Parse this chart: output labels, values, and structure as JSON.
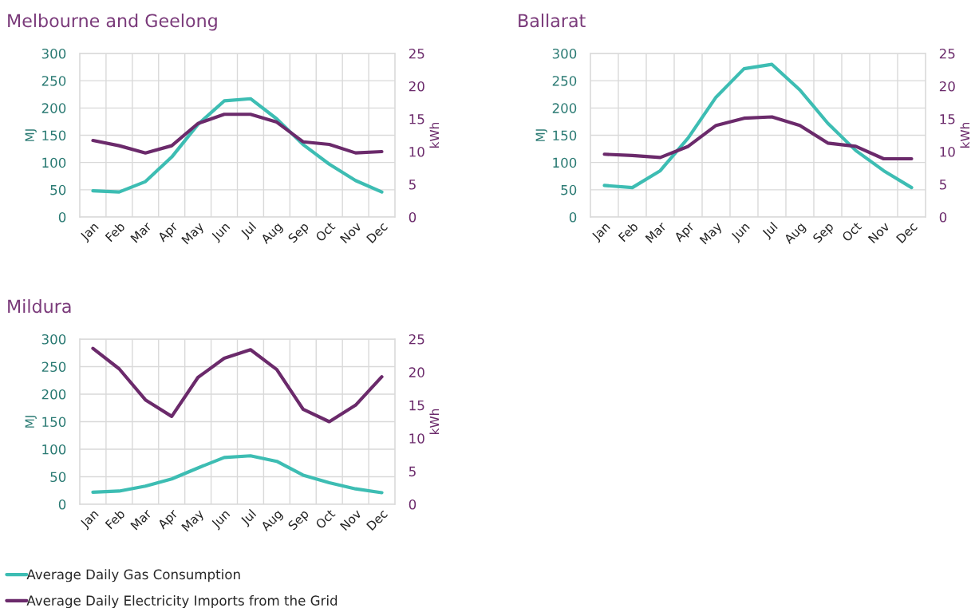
{
  "chart_data": [
    {
      "type": "line",
      "title": "Melbourne and Geelong",
      "ylabel": "MJ",
      "y2label": "kWh",
      "categories": [
        "Jan",
        "Feb",
        "Mar",
        "Apr",
        "May",
        "Jun",
        "Jul",
        "Aug",
        "Sep",
        "Oct",
        "Nov",
        "Dec"
      ],
      "ylim": [
        0,
        300
      ],
      "yticks": [
        0,
        50,
        100,
        150,
        200,
        250,
        300
      ],
      "y2lim": [
        0,
        25
      ],
      "y2ticks": [
        0,
        5,
        10,
        15,
        20,
        25
      ],
      "grid": true,
      "series": [
        {
          "color": "#3dbdb3",
          "values": [
            48,
            46,
            65,
            110,
            170,
            213,
            217,
            180,
            133,
            97,
            67,
            46
          ]
        },
        {
          "color": "#6b2a6b",
          "axis": "y2",
          "values": [
            11.7,
            10.9,
            9.8,
            10.9,
            14.3,
            15.7,
            15.7,
            14.5,
            11.5,
            11.1,
            9.8,
            10.0
          ]
        }
      ]
    },
    {
      "type": "line",
      "title": "Ballarat",
      "ylabel": "MJ",
      "y2label": "kWh",
      "categories": [
        "Jan",
        "Feb",
        "Mar",
        "Apr",
        "May",
        "Jun",
        "Jul",
        "Aug",
        "Sep",
        "Oct",
        "Nov",
        "Dec"
      ],
      "ylim": [
        0,
        300
      ],
      "yticks": [
        0,
        50,
        100,
        150,
        200,
        250,
        300
      ],
      "y2lim": [
        0,
        25
      ],
      "y2ticks": [
        0,
        5,
        10,
        15,
        20,
        25
      ],
      "grid": true,
      "series": [
        {
          "color": "#3dbdb3",
          "values": [
            58,
            54,
            85,
            145,
            220,
            272,
            280,
            233,
            172,
            122,
            85,
            54
          ]
        },
        {
          "color": "#6b2a6b",
          "axis": "y2",
          "values": [
            9.6,
            9.4,
            9.1,
            10.8,
            14.0,
            15.1,
            15.3,
            14.0,
            11.3,
            10.8,
            8.9,
            8.9
          ]
        }
      ]
    },
    {
      "type": "line",
      "title": "Mildura",
      "ylabel": "MJ",
      "y2label": "kWh",
      "categories": [
        "Jan",
        "Feb",
        "Mar",
        "Apr",
        "May",
        "Jun",
        "Jul",
        "Aug",
        "Sep",
        "Oct",
        "Nov",
        "Dec"
      ],
      "ylim": [
        0,
        300
      ],
      "yticks": [
        0,
        50,
        100,
        150,
        200,
        250,
        300
      ],
      "y2lim": [
        0,
        25
      ],
      "y2ticks": [
        0,
        5,
        10,
        15,
        20,
        25
      ],
      "grid": true,
      "legend": "bottom",
      "series": [
        {
          "name": "Average Daily Gas Consumption",
          "color": "#3dbdb3",
          "values": [
            22,
            24,
            33,
            46,
            66,
            85,
            88,
            78,
            53,
            39,
            28,
            21
          ]
        },
        {
          "name": "Average Daily Electricity Imports from the Grid",
          "color": "#6b2a6b",
          "axis": "y2",
          "values": [
            23.6,
            20.5,
            15.8,
            13.3,
            19.2,
            22.1,
            23.4,
            20.4,
            14.4,
            12.5,
            15.0,
            19.3
          ]
        }
      ]
    }
  ]
}
